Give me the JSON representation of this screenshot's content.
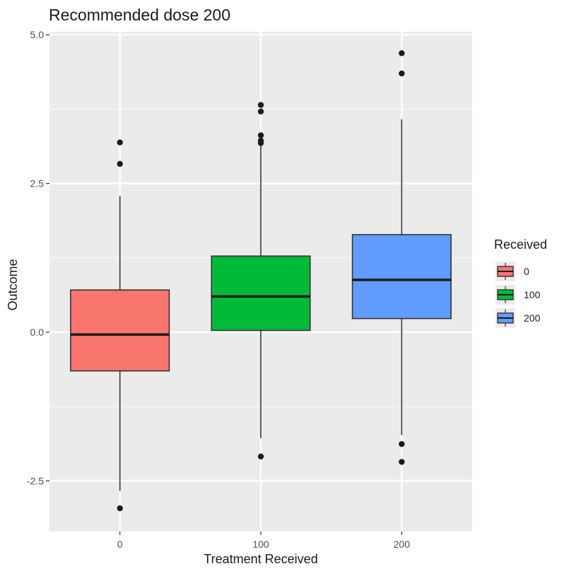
{
  "chart_data": {
    "type": "boxplot",
    "title": "Recommended dose 200",
    "xlabel": "Treatment Received",
    "ylabel": "Outcome",
    "ylim": [
      -3.35,
      5.05
    ],
    "yticks": [
      -2.5,
      0.0,
      2.5,
      5.0
    ],
    "ytick_labels": [
      "-2.5",
      "0.0",
      "2.5",
      "5.0"
    ],
    "categories": [
      "0",
      "100",
      "200"
    ],
    "legend": {
      "title": "Received",
      "position": "right",
      "entries": [
        "0",
        "100",
        "200"
      ]
    },
    "grid": true,
    "colors": {
      "panel": "#ebebeb",
      "grid": "#ffffff",
      "fills": [
        "#f8766d",
        "#00ba38",
        "#619cff"
      ],
      "outline": "#333333",
      "outlier": "#1a1a1a"
    },
    "boxes": [
      {
        "category": "0",
        "whisker_low": -2.67,
        "q1": -0.65,
        "median": -0.04,
        "q3": 0.71,
        "whisker_high": 2.29,
        "outliers": [
          3.19,
          2.83,
          -2.96
        ]
      },
      {
        "category": "100",
        "whisker_low": -1.78,
        "q1": 0.03,
        "median": 0.6,
        "q3": 1.28,
        "whisker_high": 3.15,
        "outliers": [
          3.82,
          3.71,
          3.31,
          3.22,
          3.18,
          -2.09
        ]
      },
      {
        "category": "200",
        "whisker_low": -1.73,
        "q1": 0.23,
        "median": 0.88,
        "q3": 1.64,
        "whisker_high": 3.58,
        "outliers": [
          4.69,
          4.35,
          -1.88,
          -2.18
        ]
      }
    ]
  }
}
